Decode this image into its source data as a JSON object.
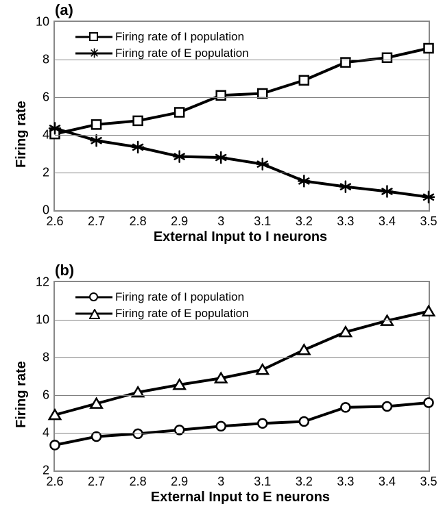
{
  "panel_a": {
    "label": "(a)",
    "type": "line",
    "x_label": "External Input to I neurons",
    "y_label": "Firing rate",
    "x_values": [
      2.6,
      2.7,
      2.8,
      2.9,
      3.0,
      3.1,
      3.2,
      3.3,
      3.4,
      3.5
    ],
    "x_tick_labels": [
      "2.6",
      "2.7",
      "2.8",
      "2.9",
      "3",
      "3.1",
      "3.2",
      "3.3",
      "3.4",
      "3.5"
    ],
    "xlim": [
      2.6,
      3.5
    ],
    "ylim": [
      0,
      10
    ],
    "ytick_step": 2,
    "grid_color": "#808080",
    "background_color": "#ffffff",
    "line_color": "#000000",
    "line_width": 4,
    "series": [
      {
        "name": "Firing rate of I population",
        "marker": "square",
        "marker_fill": "#ffffff",
        "marker_stroke": "#000000",
        "marker_size": 13,
        "y": [
          4.05,
          4.55,
          4.75,
          5.2,
          6.1,
          6.2,
          6.9,
          7.85,
          8.1,
          8.6
        ]
      },
      {
        "name": "Firing rate of E population",
        "marker": "star",
        "marker_fill": "#000000",
        "marker_stroke": "#000000",
        "marker_size": 14,
        "y": [
          4.35,
          3.7,
          3.35,
          2.85,
          2.8,
          2.45,
          1.55,
          1.25,
          1.0,
          0.7
        ]
      }
    ],
    "label_fontsize": 20,
    "tick_fontsize": 18,
    "panel_label_fontsize": 22,
    "legend_fontsize": 17,
    "legend_pos": "top-left-inside"
  },
  "panel_b": {
    "label": "(b)",
    "type": "line",
    "x_label": "External Input to E neurons",
    "y_label": "Firing rate",
    "x_values": [
      2.6,
      2.7,
      2.8,
      2.9,
      3.0,
      3.1,
      3.2,
      3.3,
      3.4,
      3.5
    ],
    "x_tick_labels": [
      "2.6",
      "2.7",
      "2.8",
      "2.9",
      "3",
      "3.1",
      "3.2",
      "3.3",
      "3.4",
      "3.5"
    ],
    "xlim": [
      2.6,
      3.5
    ],
    "ylim": [
      2,
      12
    ],
    "ytick_step": 2,
    "grid_color": "#808080",
    "background_color": "#ffffff",
    "line_color": "#000000",
    "line_width": 4,
    "series": [
      {
        "name": "Firing rate of I population",
        "marker": "circle",
        "marker_fill": "#ffffff",
        "marker_stroke": "#000000",
        "marker_size": 13,
        "y": [
          3.35,
          3.8,
          3.95,
          4.15,
          4.35,
          4.5,
          4.6,
          5.35,
          5.4,
          5.6
        ]
      },
      {
        "name": "Firing rate of E population",
        "marker": "triangle",
        "marker_fill": "#ffffff",
        "marker_stroke": "#000000",
        "marker_size": 14,
        "y": [
          4.95,
          5.55,
          6.15,
          6.55,
          6.9,
          7.35,
          8.4,
          9.35,
          9.95,
          10.45
        ]
      }
    ],
    "label_fontsize": 20,
    "tick_fontsize": 18,
    "panel_label_fontsize": 22,
    "legend_fontsize": 17,
    "legend_pos": "top-left-inside"
  }
}
